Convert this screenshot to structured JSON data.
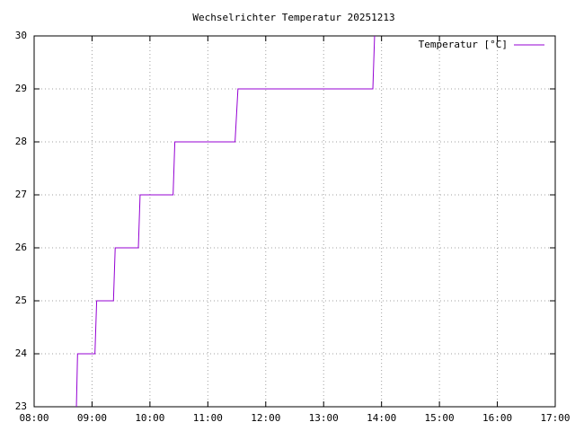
{
  "chart_data": {
    "type": "line",
    "title": "Wechselrichter Temperatur 20251213",
    "x": [
      8.73,
      8.75,
      9.05,
      9.08,
      9.37,
      9.4,
      9.8,
      9.83,
      10.4,
      10.43,
      11.47,
      11.52,
      13.85,
      13.88
    ],
    "series": [
      {
        "name": "Temperatur [°C]",
        "color": "#9400d3",
        "values": [
          23,
          24,
          24,
          25,
          25,
          26,
          26,
          27,
          27,
          28,
          28,
          29,
          29,
          30
        ]
      }
    ],
    "xlim": [
      8,
      17
    ],
    "xticks": [
      {
        "value": 8,
        "label": "08:00"
      },
      {
        "value": 9,
        "label": "09:00"
      },
      {
        "value": 10,
        "label": "10:00"
      },
      {
        "value": 11,
        "label": "11:00"
      },
      {
        "value": 12,
        "label": "12:00"
      },
      {
        "value": 13,
        "label": "13:00"
      },
      {
        "value": 14,
        "label": "14:00"
      },
      {
        "value": 15,
        "label": "15:00"
      },
      {
        "value": 16,
        "label": "16:00"
      },
      {
        "value": 17,
        "label": "17:00"
      }
    ],
    "ylim": [
      23,
      30
    ],
    "yticks": [
      23,
      24,
      25,
      26,
      27,
      28,
      29,
      30
    ],
    "grid": true,
    "legend": "top-right"
  }
}
